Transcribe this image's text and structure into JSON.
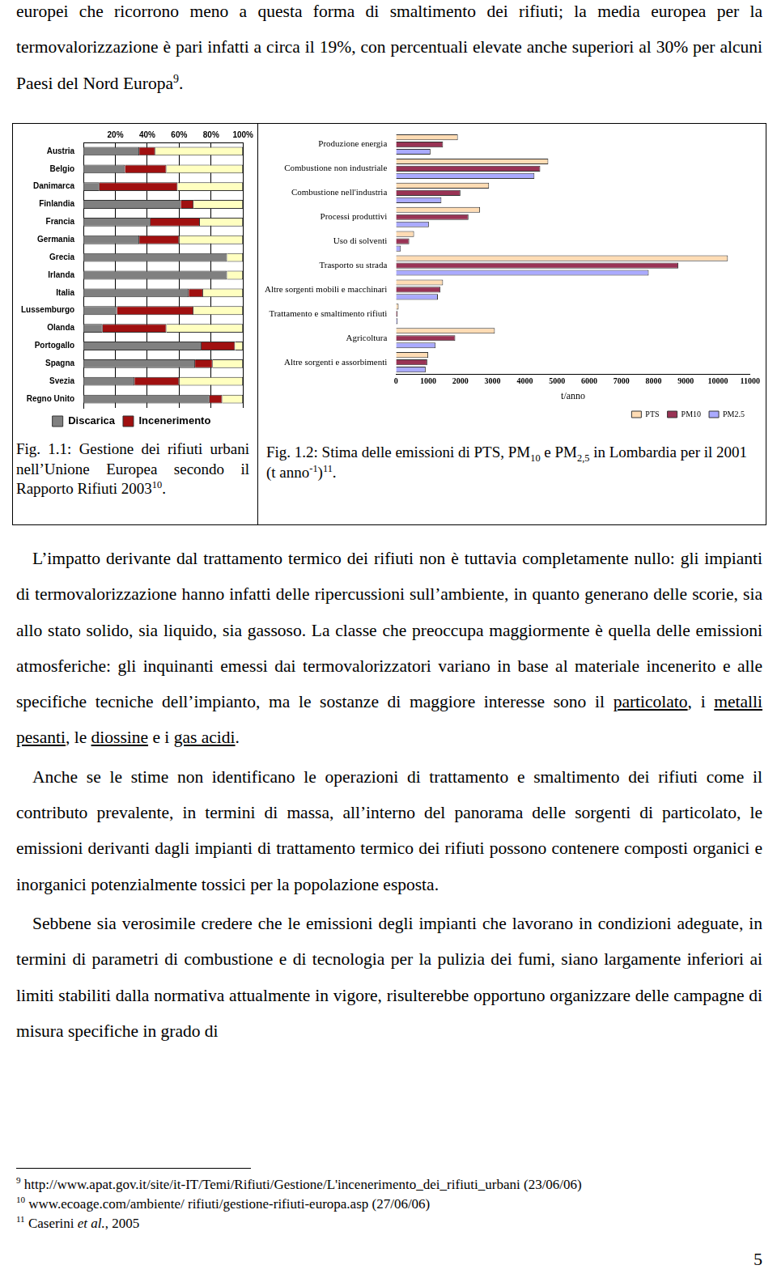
{
  "page": {
    "intro": [
      "europei che ricorrono meno a questa forma di smaltimento dei rifiuti; la media europea per la termovalorizzazione è pari infatti a circa il 19%, con percentuali elevate anche superiori al 30% per alcuni Paesi del Nord Europa",
      {
        "text": "9",
        "style": "sup"
      },
      "."
    ],
    "captions": [
      [
        "Fig. 1.1: Gestione dei rifiuti urbani nell’Unione Europea secondo il Rapporto Rifiuti 2003",
        {
          "text": "10",
          "style": "sup"
        },
        "."
      ],
      [
        "Fig. 1.2: Stima delle emissioni di PTS, PM",
        {
          "text": "10",
          "style": "sub"
        },
        " e PM",
        {
          "text": "2,5",
          "style": "sub"
        },
        " in Lombardia per il 2001 (t anno",
        {
          "text": "-1",
          "style": "sup"
        },
        ")",
        {
          "text": "11",
          "style": "sup"
        },
        "."
      ]
    ],
    "paragraphs": [
      [
        "L’impatto derivante dal trattamento termico dei rifiuti non è tuttavia completamente nullo: gli impianti di termovalorizzazione hanno infatti delle ripercussioni sull’ambiente, in quanto generano delle scorie, sia allo stato solido, sia liquido, sia gassoso. La classe che preoccupa maggiormente è quella delle emissioni atmosferiche: gli inquinanti emessi dai termovalorizzatori variano in base al materiale incenerito e alle specifiche tecniche dell’impianto, ma le sostanze di maggiore interesse sono il ",
        {
          "text": "particolato",
          "style": "u"
        },
        ", i ",
        {
          "text": "metalli pesanti",
          "style": "u"
        },
        ", le ",
        {
          "text": "diossine",
          "style": "u"
        },
        " e i ",
        {
          "text": "gas acidi",
          "style": "u"
        },
        "."
      ],
      [
        "Anche se le stime non identificano le operazioni di trattamento e smaltimento dei rifiuti come il contributo prevalente, in termini di massa, all’interno del panorama delle sorgenti di particolato, le emissioni derivanti dagli impianti di trattamento termico dei rifiuti possono contenere composti organici e inorganici potenzialmente tossici per la popolazione esposta."
      ],
      [
        "Sebbene sia verosimile credere che le emissioni degli impianti che lavorano in condizioni adeguate, in termini di parametri di combustione e di tecnologia per la pulizia dei fumi, siano largamente inferiori ai limiti stabiliti dalla normativa attualmente in vigore, risulterebbe opportuno organizzare delle campagne di misura specifiche in grado di"
      ]
    ],
    "footnotes": [
      [
        {
          "text": "9",
          "style": "sup"
        },
        " http://www.apat.gov.it/site/it-IT/Temi/Rifiuti/Gestione/L'incenerimento_dei_rifiuti_urbani (23/06/06)"
      ],
      [
        {
          "text": "10",
          "style": "sup"
        },
        " www.ecoage.com/ambiente/ rifiuti/gestione-rifiuti-europa.asp (27/06/06)"
      ],
      [
        {
          "text": "11",
          "style": "sup"
        },
        " Caserini ",
        {
          "text": "et al.",
          "style": "i"
        },
        ", 2005"
      ]
    ],
    "page_number": "5"
  },
  "chart_data": [
    {
      "type": "bar",
      "orientation": "horizontal",
      "stacked": true,
      "grid": true,
      "legend": "bottom",
      "categories": [
        "Austria",
        "Belgio",
        "Danimarca",
        "Finlandia",
        "Francia",
        "Germania",
        "Grecia",
        "Irlanda",
        "Italia",
        "Lussemburgo",
        "Olanda",
        "Portogallo",
        "Spagna",
        "Svezia",
        "Regno Unito"
      ],
      "series": [
        {
          "name": "Discarica",
          "color": "#808080",
          "values": [
            35,
            26,
            10,
            61,
            42,
            35,
            90,
            90,
            66,
            21,
            12,
            74,
            70,
            32,
            79
          ]
        },
        {
          "name": "Incenerimento",
          "color": "#a01010",
          "values": [
            10,
            26,
            49,
            8,
            31,
            25,
            0,
            0,
            9,
            48,
            40,
            21,
            11,
            28,
            8
          ]
        },
        {
          "name": null,
          "color": "#ffffc0",
          "values": [
            55,
            48,
            41,
            31,
            27,
            40,
            10,
            10,
            25,
            31,
            48,
            5,
            19,
            40,
            13
          ]
        }
      ],
      "xlim": [
        0,
        100
      ],
      "xticks": [
        {
          "value": 20,
          "label": "20%"
        },
        {
          "value": 40,
          "label": "40%"
        },
        {
          "value": 60,
          "label": "60%"
        },
        {
          "value": 80,
          "label": "80%"
        },
        {
          "value": 100,
          "label": "100%"
        }
      ]
    },
    {
      "type": "bar",
      "orientation": "horizontal",
      "grid": false,
      "legend": "bottom",
      "xlabel": "t/anno",
      "categories": [
        "Produzione energia",
        "Combustione non industriale",
        "Combustione nell'industria",
        "Processi produttivi",
        "Uso di solventi",
        "Trasporto su strada",
        "Altre sorgenti mobili e macchinari",
        "Trattamento e smaltimento rifiuti",
        "Agricoltura",
        "Altre sorgenti e assorbimenti"
      ],
      "series": [
        {
          "name": "PTS",
          "color": "#ffdcb4",
          "values": [
            1920,
            4730,
            2890,
            2610,
            560,
            10310,
            1460,
            80,
            3070,
            1000
          ]
        },
        {
          "name": "PM10",
          "color": "#993355",
          "values": [
            1460,
            4480,
            2000,
            2250,
            410,
            8770,
            1380,
            50,
            1840,
            970
          ]
        },
        {
          "name": "PM2.5",
          "color": "#aaaaff",
          "values": [
            1070,
            4300,
            1410,
            1020,
            150,
            7850,
            1300,
            50,
            1230,
            920
          ]
        }
      ],
      "xlim": [
        0,
        11000
      ],
      "xticks": [
        0,
        1000,
        2000,
        3000,
        4000,
        5000,
        6000,
        7000,
        8000,
        9000,
        10000,
        11000
      ]
    }
  ]
}
